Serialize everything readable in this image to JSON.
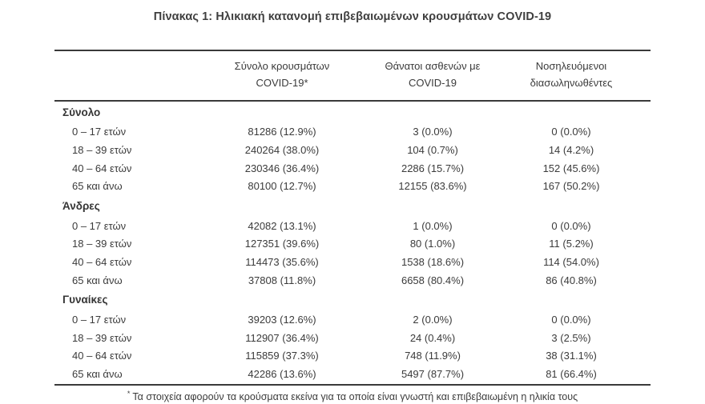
{
  "title": "Πίνακας 1: Ηλικιακή κατανομή επιβεβαιωμένων κρουσμάτων COVID-19",
  "table": {
    "columns": {
      "cases_line1": "Σύνολο κρουσμάτων",
      "cases_line2": "COVID-19*",
      "deaths_line1": "Θάνατοι ασθενών με",
      "deaths_line2": "COVID-19",
      "intubated_line1": "Νοσηλευόμενοι",
      "intubated_line2": "διασωληνωθέντες"
    },
    "sections": [
      {
        "label": "Σύνολο",
        "rows": [
          {
            "age": "0 – 17 ετών",
            "cases": "81286 (12.9%)",
            "deaths": "3 (0.0%)",
            "intubated": "0 (0.0%)"
          },
          {
            "age": "18 – 39 ετών",
            "cases": "240264 (38.0%)",
            "deaths": "104 (0.7%)",
            "intubated": "14 (4.2%)"
          },
          {
            "age": "40 – 64 ετών",
            "cases": "230346 (36.4%)",
            "deaths": "2286 (15.7%)",
            "intubated": "152 (45.6%)"
          },
          {
            "age": "65 και άνω",
            "cases": "80100 (12.7%)",
            "deaths": "12155 (83.6%)",
            "intubated": "167 (50.2%)"
          }
        ]
      },
      {
        "label": "Άνδρες",
        "rows": [
          {
            "age": "0 – 17 ετών",
            "cases": "42082 (13.1%)",
            "deaths": "1 (0.0%)",
            "intubated": "0 (0.0%)"
          },
          {
            "age": "18 – 39 ετών",
            "cases": "127351 (39.6%)",
            "deaths": "80 (1.0%)",
            "intubated": "11 (5.2%)"
          },
          {
            "age": "40 – 64 ετών",
            "cases": "114473 (35.6%)",
            "deaths": "1538 (18.6%)",
            "intubated": "114 (54.0%)"
          },
          {
            "age": "65 και άνω",
            "cases": "37808 (11.8%)",
            "deaths": "6658 (80.4%)",
            "intubated": "86 (40.8%)"
          }
        ]
      },
      {
        "label": "Γυναίκες",
        "rows": [
          {
            "age": "0 – 17 ετών",
            "cases": "39203 (12.6%)",
            "deaths": "2 (0.0%)",
            "intubated": "0 (0.0%)"
          },
          {
            "age": "18 – 39 ετών",
            "cases": "112907 (36.4%)",
            "deaths": "24 (0.4%)",
            "intubated": "3 (2.5%)"
          },
          {
            "age": "40 – 64 ετών",
            "cases": "115859 (37.3%)",
            "deaths": "748 (11.9%)",
            "intubated": "38 (31.1%)"
          },
          {
            "age": "65 και άνω",
            "cases": "42286 (13.6%)",
            "deaths": "5497 (87.7%)",
            "intubated": "81 (66.4%)"
          }
        ]
      }
    ]
  },
  "footnote": {
    "marker": "*",
    "text": "Τα στοιχεία αφορούν τα κρούσματα εκείνα για τα οποία είναι γνωστή και επιβεβαιωμένη η ηλικία τους"
  },
  "colors": {
    "text": "#3b3b3b",
    "rule": "#3a3a3a"
  }
}
